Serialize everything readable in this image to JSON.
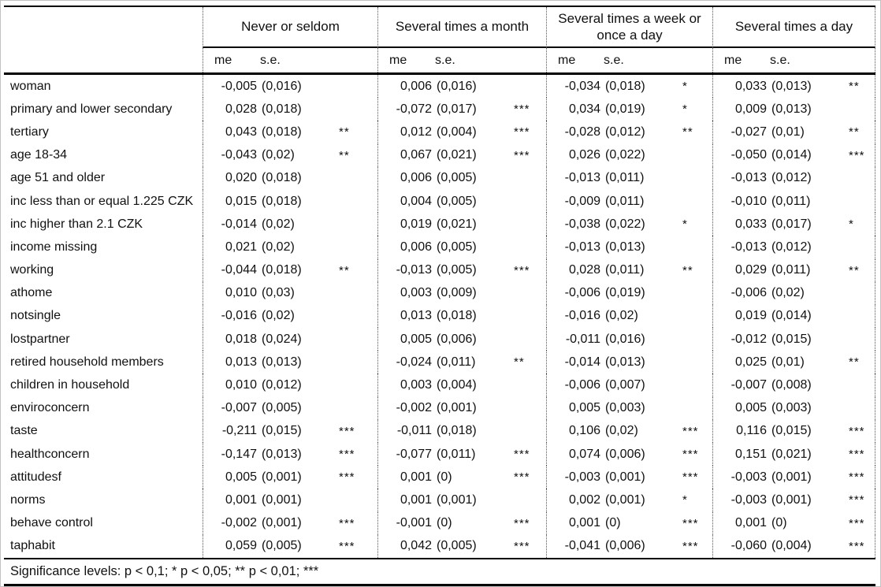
{
  "table": {
    "col_groups": [
      {
        "label": "Never or seldom"
      },
      {
        "label": "Several times a month"
      },
      {
        "label": "Several times a week or once a day"
      },
      {
        "label": "Several times a day"
      }
    ],
    "subheaders": {
      "me": "me",
      "se": "s.e."
    },
    "rows": [
      {
        "label": "woman",
        "cells": [
          {
            "me": "-0,005",
            "se": "(0,016)",
            "sig": ""
          },
          {
            "me": "0,006",
            "se": "(0,016)",
            "sig": ""
          },
          {
            "me": "-0,034",
            "se": "(0,018)",
            "sig": "*"
          },
          {
            "me": "0,033",
            "se": "(0,013)",
            "sig": "**"
          }
        ]
      },
      {
        "label": "primary and lower secondary",
        "cells": [
          {
            "me": "0,028",
            "se": "(0,018)",
            "sig": ""
          },
          {
            "me": "-0,072",
            "se": "(0,017)",
            "sig": "***"
          },
          {
            "me": "0,034",
            "se": "(0,019)",
            "sig": "*"
          },
          {
            "me": "0,009",
            "se": "(0,013)",
            "sig": ""
          }
        ]
      },
      {
        "label": "tertiary",
        "cells": [
          {
            "me": "0,043",
            "se": "(0,018)",
            "sig": "**"
          },
          {
            "me": "0,012",
            "se": "(0,004)",
            "sig": "***"
          },
          {
            "me": "-0,028",
            "se": "(0,012)",
            "sig": "**"
          },
          {
            "me": "-0,027",
            "se": "(0,01)",
            "sig": "**"
          }
        ]
      },
      {
        "label": "age 18-34",
        "cells": [
          {
            "me": "-0,043",
            "se": "(0,02)",
            "sig": "**"
          },
          {
            "me": "0,067",
            "se": "(0,021)",
            "sig": "***"
          },
          {
            "me": "0,026",
            "se": "(0,022)",
            "sig": ""
          },
          {
            "me": "-0,050",
            "se": "(0,014)",
            "sig": "***"
          }
        ]
      },
      {
        "label": "age 51 and older",
        "cells": [
          {
            "me": "0,020",
            "se": "(0,018)",
            "sig": ""
          },
          {
            "me": "0,006",
            "se": "(0,005)",
            "sig": ""
          },
          {
            "me": "-0,013",
            "se": "(0,011)",
            "sig": ""
          },
          {
            "me": "-0,013",
            "se": "(0,012)",
            "sig": ""
          }
        ]
      },
      {
        "label": "inc less than or equal 1.225 CZK",
        "cells": [
          {
            "me": "0,015",
            "se": "(0,018)",
            "sig": ""
          },
          {
            "me": "0,004",
            "se": "(0,005)",
            "sig": ""
          },
          {
            "me": "-0,009",
            "se": "(0,011)",
            "sig": ""
          },
          {
            "me": "-0,010",
            "se": "(0,011)",
            "sig": ""
          }
        ]
      },
      {
        "label": "inc higher than 2.1 CZK",
        "cells": [
          {
            "me": "-0,014",
            "se": "(0,02)",
            "sig": ""
          },
          {
            "me": "0,019",
            "se": "(0,021)",
            "sig": ""
          },
          {
            "me": "-0,038",
            "se": "(0,022)",
            "sig": "*"
          },
          {
            "me": "0,033",
            "se": "(0,017)",
            "sig": "*"
          }
        ]
      },
      {
        "label": "income missing",
        "cells": [
          {
            "me": "0,021",
            "se": "(0,02)",
            "sig": ""
          },
          {
            "me": "0,006",
            "se": "(0,005)",
            "sig": ""
          },
          {
            "me": "-0,013",
            "se": "(0,013)",
            "sig": ""
          },
          {
            "me": "-0,013",
            "se": "(0,012)",
            "sig": ""
          }
        ]
      },
      {
        "label": "working",
        "cells": [
          {
            "me": "-0,044",
            "se": "(0,018)",
            "sig": "**"
          },
          {
            "me": "-0,013",
            "se": "(0,005)",
            "sig": "***"
          },
          {
            "me": "0,028",
            "se": "(0,011)",
            "sig": "**"
          },
          {
            "me": "0,029",
            "se": "(0,011)",
            "sig": "**"
          }
        ]
      },
      {
        "label": "athome",
        "cells": [
          {
            "me": "0,010",
            "se": "(0,03)",
            "sig": ""
          },
          {
            "me": "0,003",
            "se": "(0,009)",
            "sig": ""
          },
          {
            "me": "-0,006",
            "se": "(0,019)",
            "sig": ""
          },
          {
            "me": "-0,006",
            "se": "(0,02)",
            "sig": ""
          }
        ]
      },
      {
        "label": "notsingle",
        "cells": [
          {
            "me": "-0,016",
            "se": "(0,02)",
            "sig": ""
          },
          {
            "me": "0,013",
            "se": "(0,018)",
            "sig": ""
          },
          {
            "me": "-0,016",
            "se": "(0,02)",
            "sig": ""
          },
          {
            "me": "0,019",
            "se": "(0,014)",
            "sig": ""
          }
        ]
      },
      {
        "label": "lostpartner",
        "cells": [
          {
            "me": "0,018",
            "se": "(0,024)",
            "sig": ""
          },
          {
            "me": "0,005",
            "se": "(0,006)",
            "sig": ""
          },
          {
            "me": "-0,011",
            "se": "(0,016)",
            "sig": ""
          },
          {
            "me": "-0,012",
            "se": "(0,015)",
            "sig": ""
          }
        ]
      },
      {
        "label": "retired household members",
        "cells": [
          {
            "me": "0,013",
            "se": "(0,013)",
            "sig": ""
          },
          {
            "me": "-0,024",
            "se": "(0,011)",
            "sig": "**"
          },
          {
            "me": "-0,014",
            "se": "(0,013)",
            "sig": ""
          },
          {
            "me": "0,025",
            "se": "(0,01)",
            "sig": "**"
          }
        ]
      },
      {
        "label": "children in household",
        "cells": [
          {
            "me": "0,010",
            "se": "(0,012)",
            "sig": ""
          },
          {
            "me": "0,003",
            "se": "(0,004)",
            "sig": ""
          },
          {
            "me": "-0,006",
            "se": "(0,007)",
            "sig": ""
          },
          {
            "me": "-0,007",
            "se": "(0,008)",
            "sig": ""
          }
        ]
      },
      {
        "label": "enviroconcern",
        "cells": [
          {
            "me": "-0,007",
            "se": "(0,005)",
            "sig": ""
          },
          {
            "me": "-0,002",
            "se": "(0,001)",
            "sig": ""
          },
          {
            "me": "0,005",
            "se": "(0,003)",
            "sig": ""
          },
          {
            "me": "0,005",
            "se": "(0,003)",
            "sig": ""
          }
        ]
      },
      {
        "label": "taste",
        "cells": [
          {
            "me": "-0,211",
            "se": "(0,015)",
            "sig": "***"
          },
          {
            "me": "-0,011",
            "se": "(0,018)",
            "sig": ""
          },
          {
            "me": "0,106",
            "se": "(0,02)",
            "sig": "***"
          },
          {
            "me": "0,116",
            "se": "(0,015)",
            "sig": "***"
          }
        ]
      },
      {
        "label": "healthconcern",
        "cells": [
          {
            "me": "-0,147",
            "se": "(0,013)",
            "sig": "***"
          },
          {
            "me": "-0,077",
            "se": "(0,011)",
            "sig": "***"
          },
          {
            "me": "0,074",
            "se": "(0,006)",
            "sig": "***"
          },
          {
            "me": "0,151",
            "se": "(0,021)",
            "sig": "***"
          }
        ]
      },
      {
        "label": "attitudesf",
        "cells": [
          {
            "me": "0,005",
            "se": "(0,001)",
            "sig": "***"
          },
          {
            "me": "0,001",
            "se": "(0)",
            "sig": "***"
          },
          {
            "me": "-0,003",
            "se": "(0,001)",
            "sig": "***"
          },
          {
            "me": "-0,003",
            "se": "(0,001)",
            "sig": "***"
          }
        ]
      },
      {
        "label": "norms",
        "cells": [
          {
            "me": "0,001",
            "se": "(0,001)",
            "sig": ""
          },
          {
            "me": "0,001",
            "se": "(0,001)",
            "sig": ""
          },
          {
            "me": "0,002",
            "se": "(0,001)",
            "sig": "*"
          },
          {
            "me": "-0,003",
            "se": "(0,001)",
            "sig": "***"
          }
        ]
      },
      {
        "label": "behave control",
        "cells": [
          {
            "me": "-0,002",
            "se": "(0,001)",
            "sig": "***"
          },
          {
            "me": "-0,001",
            "se": "(0)",
            "sig": "***"
          },
          {
            "me": "0,001",
            "se": "(0)",
            "sig": "***"
          },
          {
            "me": "0,001",
            "se": "(0)",
            "sig": "***"
          }
        ]
      },
      {
        "label": "taphabit",
        "cells": [
          {
            "me": "0,059",
            "se": "(0,005)",
            "sig": "***"
          },
          {
            "me": "0,042",
            "se": "(0,005)",
            "sig": "***"
          },
          {
            "me": "-0,041",
            "se": "(0,006)",
            "sig": "***"
          },
          {
            "me": "-0,060",
            "se": "(0,004)",
            "sig": "***"
          }
        ]
      }
    ],
    "footer": "Significance levels:  p < 0,1; * p < 0,05; ** p < 0,01; ***"
  }
}
